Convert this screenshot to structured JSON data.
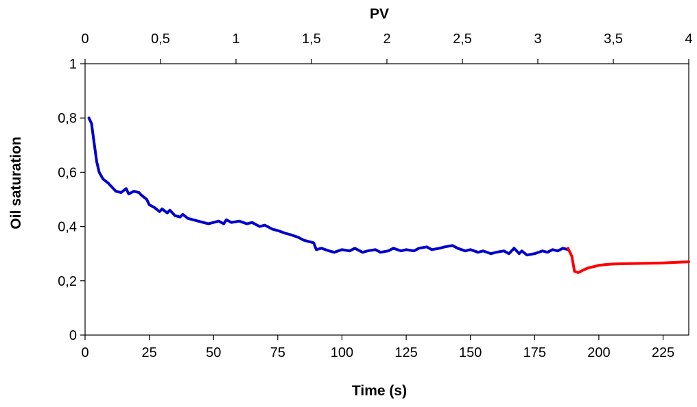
{
  "chart_data": {
    "type": "line",
    "xlabel": "Time (s)",
    "ylabel": "Oil saturation",
    "top_xlabel": "PV",
    "xlim": [
      0,
      235
    ],
    "ylim": [
      0,
      1
    ],
    "top_xlim": [
      0,
      4
    ],
    "x_ticks": [
      0,
      25,
      50,
      75,
      100,
      125,
      150,
      175,
      200,
      225
    ],
    "x_tick_labels": [
      "0",
      "25",
      "50",
      "75",
      "100",
      "125",
      "150",
      "175",
      "200",
      "225"
    ],
    "y_ticks": [
      0,
      0.2,
      0.4,
      0.6,
      0.8,
      1
    ],
    "y_tick_labels": [
      "0",
      "0,2",
      "0,4",
      "0,6",
      "0,8",
      "1"
    ],
    "top_x_ticks": [
      0,
      0.5,
      1,
      1.5,
      2,
      2.5,
      3,
      3.5,
      4
    ],
    "top_x_tick_labels": [
      "0",
      "0,5",
      "1",
      "1,5",
      "2",
      "2,5",
      "3",
      "3,5",
      "4"
    ],
    "grid": false,
    "legend": "none",
    "series": [
      {
        "color": "#0000CC",
        "x": [
          1.5,
          2.5,
          3.5,
          4.5,
          5.5,
          7,
          9,
          10,
          12,
          14,
          16,
          17,
          19,
          21,
          22,
          24,
          25,
          27,
          29,
          30,
          32,
          33,
          35,
          37,
          38,
          40,
          42,
          44,
          46,
          48,
          50,
          52,
          54,
          55,
          57,
          60,
          63,
          65,
          68,
          70,
          73,
          75,
          78,
          80,
          83,
          85,
          87,
          89,
          90,
          92,
          95,
          97,
          100,
          103,
          105,
          108,
          110,
          113,
          115,
          118,
          120,
          123,
          125,
          128,
          130,
          133,
          135,
          138,
          140,
          143,
          145,
          148,
          150,
          153,
          155,
          158,
          160,
          163,
          165,
          167,
          169,
          170,
          172,
          175,
          178,
          180,
          182,
          184,
          186,
          188
        ],
        "y": [
          0.8,
          0.78,
          0.71,
          0.64,
          0.6,
          0.575,
          0.56,
          0.55,
          0.53,
          0.525,
          0.54,
          0.52,
          0.53,
          0.525,
          0.515,
          0.5,
          0.48,
          0.47,
          0.455,
          0.465,
          0.45,
          0.46,
          0.44,
          0.435,
          0.445,
          0.43,
          0.425,
          0.42,
          0.415,
          0.41,
          0.415,
          0.42,
          0.41,
          0.425,
          0.415,
          0.42,
          0.41,
          0.415,
          0.4,
          0.405,
          0.39,
          0.385,
          0.375,
          0.37,
          0.36,
          0.35,
          0.345,
          0.34,
          0.315,
          0.32,
          0.31,
          0.305,
          0.315,
          0.31,
          0.32,
          0.305,
          0.31,
          0.315,
          0.305,
          0.31,
          0.32,
          0.31,
          0.315,
          0.31,
          0.32,
          0.325,
          0.315,
          0.32,
          0.325,
          0.33,
          0.32,
          0.31,
          0.315,
          0.305,
          0.31,
          0.3,
          0.305,
          0.31,
          0.3,
          0.32,
          0.3,
          0.31,
          0.295,
          0.3,
          0.31,
          0.305,
          0.315,
          0.31,
          0.32,
          0.315
        ]
      },
      {
        "color": "#FF0000",
        "x": [
          188,
          189.5,
          190.5,
          192,
          194,
          196,
          198,
          200,
          203,
          206,
          210,
          215,
          220,
          225,
          230,
          235
        ],
        "y": [
          0.32,
          0.29,
          0.235,
          0.23,
          0.24,
          0.248,
          0.252,
          0.257,
          0.26,
          0.262,
          0.263,
          0.264,
          0.265,
          0.266,
          0.268,
          0.27
        ]
      }
    ]
  }
}
